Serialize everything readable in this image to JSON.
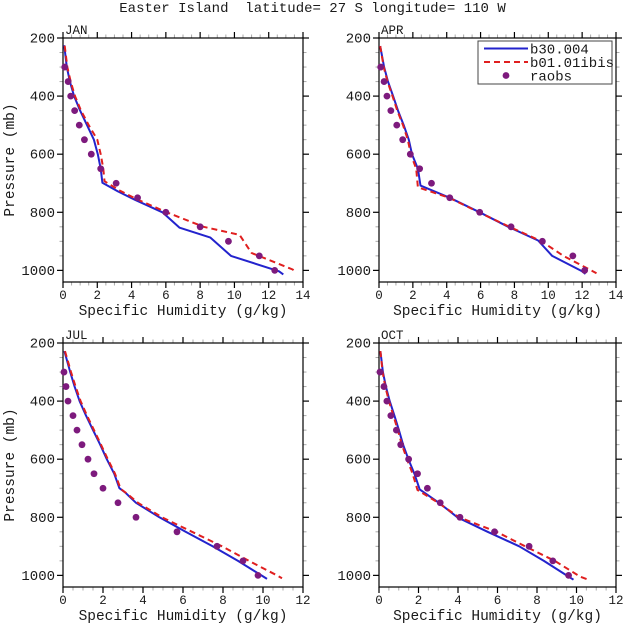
{
  "title": "Easter Island  latitude= 27 S longitude= 110 W",
  "axis_titles": {
    "x": "Specific Humidity (g/kg)",
    "y": "Pressure (mb)"
  },
  "colors": {
    "b30_004": "#2323cd",
    "b01_01ibis": "#e01f1f",
    "raobs": "#7d1a7d",
    "axis": "#000000",
    "minor_tick": "#aaaaaa",
    "legend_border": "#444444",
    "background": "#ffffff"
  },
  "legend": {
    "items": [
      {
        "label": "b30.004",
        "style": "solid",
        "color": "b30_004"
      },
      {
        "label": "b01.01ibis",
        "style": "dashed",
        "color": "b01_01ibis"
      },
      {
        "label": "raobs",
        "style": "dot",
        "color": "raobs"
      }
    ]
  },
  "chart_data": [
    {
      "type": "line",
      "title": "JAN",
      "xlabel": "Specific Humidity (g/kg)",
      "ylabel": "Pressure (mb)",
      "xlim": [
        0,
        14
      ],
      "ylim": [
        200,
        1040
      ],
      "y_ticks": [
        200,
        400,
        600,
        800,
        1000
      ],
      "x_major_step": 2,
      "x_minor_step": 0.5,
      "y_major_step": 200,
      "y_minor_step": 50,
      "y_inverted": true,
      "series": [
        {
          "name": "b30.004",
          "style": "solid",
          "color": "b30_004",
          "points": [
            [
              0.07,
              225
            ],
            [
              0.22,
              300
            ],
            [
              0.4,
              350
            ],
            [
              0.65,
              400
            ],
            [
              1.0,
              450
            ],
            [
              1.4,
              500
            ],
            [
              1.8,
              550
            ],
            [
              2.03,
              600
            ],
            [
              2.2,
              650
            ],
            [
              2.3,
              698
            ],
            [
              3.2,
              728
            ],
            [
              4.2,
              757
            ],
            [
              5.8,
              800
            ],
            [
              6.8,
              853
            ],
            [
              8.6,
              887
            ],
            [
              9.8,
              950
            ],
            [
              12.6,
              1003
            ],
            [
              12.85,
              1014
            ]
          ]
        },
        {
          "name": "b01.01ibis",
          "style": "dashed",
          "color": "b01_01ibis",
          "points": [
            [
              0.1,
              227
            ],
            [
              0.25,
              300
            ],
            [
              0.45,
              350
            ],
            [
              0.7,
              400
            ],
            [
              1.05,
              450
            ],
            [
              1.5,
              500
            ],
            [
              2.0,
              550
            ],
            [
              2.2,
              600
            ],
            [
              2.35,
              650
            ],
            [
              2.42,
              693
            ],
            [
              3.3,
              725
            ],
            [
              4.3,
              755
            ],
            [
              6.05,
              800
            ],
            [
              8.2,
              850
            ],
            [
              10.3,
              878
            ],
            [
              11.0,
              940
            ],
            [
              13.4,
              997
            ],
            [
              13.6,
              1007
            ]
          ]
        },
        {
          "name": "raobs",
          "style": "dot",
          "color": "raobs",
          "points": [
            [
              0.1,
              300
            ],
            [
              0.3,
              350
            ],
            [
              0.45,
              400
            ],
            [
              0.68,
              450
            ],
            [
              0.95,
              500
            ],
            [
              1.25,
              550
            ],
            [
              1.65,
              600
            ],
            [
              2.2,
              650
            ],
            [
              3.1,
              700
            ],
            [
              4.35,
              750
            ],
            [
              6.0,
              800
            ],
            [
              8.0,
              850
            ],
            [
              9.65,
              900
            ],
            [
              11.45,
              950
            ],
            [
              12.35,
              1000
            ]
          ]
        }
      ]
    },
    {
      "type": "line",
      "title": "APR",
      "xlabel": "Specific Humidity (g/kg)",
      "ylabel": "Pressure (mb)",
      "xlim": [
        0,
        14
      ],
      "ylim": [
        200,
        1040
      ],
      "y_ticks": [
        200,
        400,
        600,
        800,
        1000
      ],
      "x_major_step": 2,
      "x_minor_step": 0.5,
      "y_major_step": 200,
      "y_minor_step": 50,
      "y_inverted": true,
      "series": [
        {
          "name": "b30.004",
          "style": "solid",
          "color": "b30_004",
          "points": [
            [
              0.07,
              228
            ],
            [
              0.3,
              300
            ],
            [
              0.53,
              350
            ],
            [
              0.83,
              400
            ],
            [
              1.12,
              450
            ],
            [
              1.46,
              500
            ],
            [
              1.76,
              550
            ],
            [
              1.95,
              600
            ],
            [
              2.3,
              650
            ],
            [
              2.45,
              708
            ],
            [
              4.18,
              750
            ],
            [
              5.95,
              800
            ],
            [
              7.63,
              850
            ],
            [
              9.4,
              897
            ],
            [
              10.23,
              950
            ],
            [
              11.97,
              1002
            ],
            [
              12.2,
              1012
            ]
          ]
        },
        {
          "name": "b01.01ibis",
          "style": "dashed",
          "color": "b01_01ibis",
          "points": [
            [
              0.07,
              228
            ],
            [
              0.28,
              300
            ],
            [
              0.5,
              350
            ],
            [
              0.8,
              400
            ],
            [
              1.08,
              450
            ],
            [
              1.42,
              500
            ],
            [
              1.7,
              550
            ],
            [
              1.88,
              600
            ],
            [
              2.2,
              650
            ],
            [
              2.3,
              714
            ],
            [
              4.15,
              750
            ],
            [
              5.9,
              800
            ],
            [
              7.7,
              850
            ],
            [
              9.6,
              900
            ],
            [
              10.9,
              950
            ],
            [
              12.6,
              1002
            ],
            [
              12.85,
              1010
            ]
          ]
        },
        {
          "name": "raobs",
          "style": "dot",
          "color": "raobs",
          "points": [
            [
              0.1,
              300
            ],
            [
              0.3,
              350
            ],
            [
              0.47,
              400
            ],
            [
              0.7,
              450
            ],
            [
              1.05,
              500
            ],
            [
              1.4,
              550
            ],
            [
              1.85,
              600
            ],
            [
              2.4,
              650
            ],
            [
              3.1,
              700
            ],
            [
              4.18,
              750
            ],
            [
              5.95,
              800
            ],
            [
              7.8,
              850
            ],
            [
              9.65,
              900
            ],
            [
              11.45,
              950
            ],
            [
              12.15,
              1000
            ]
          ]
        }
      ]
    },
    {
      "type": "line",
      "title": "JUL",
      "xlabel": "Specific Humidity (g/kg)",
      "ylabel": "Pressure (mb)",
      "xlim": [
        0,
        12
      ],
      "ylim": [
        200,
        1040
      ],
      "y_ticks": [
        200,
        400,
        600,
        800,
        1000
      ],
      "x_major_step": 2,
      "x_minor_step": 0.5,
      "y_major_step": 200,
      "y_minor_step": 50,
      "y_inverted": true,
      "series": [
        {
          "name": "b30.004",
          "style": "solid",
          "color": "b30_004",
          "points": [
            [
              0.07,
              228
            ],
            [
              0.36,
              300
            ],
            [
              0.58,
              350
            ],
            [
              0.83,
              400
            ],
            [
              1.15,
              450
            ],
            [
              1.5,
              500
            ],
            [
              1.86,
              550
            ],
            [
              2.19,
              600
            ],
            [
              2.56,
              650
            ],
            [
              2.82,
              700
            ],
            [
              3.1,
              714
            ],
            [
              3.65,
              750
            ],
            [
              4.82,
              800
            ],
            [
              6.13,
              850
            ],
            [
              7.48,
              900
            ],
            [
              8.75,
              950
            ],
            [
              9.92,
              1000
            ],
            [
              10.2,
              1012
            ]
          ]
        },
        {
          "name": "b01.01ibis",
          "style": "dashed",
          "color": "b01_01ibis",
          "points": [
            [
              0.1,
              228
            ],
            [
              0.4,
              300
            ],
            [
              0.63,
              350
            ],
            [
              0.88,
              400
            ],
            [
              1.2,
              450
            ],
            [
              1.55,
              500
            ],
            [
              1.9,
              550
            ],
            [
              2.24,
              600
            ],
            [
              2.6,
              650
            ],
            [
              2.88,
              702
            ],
            [
              3.15,
              716
            ],
            [
              3.75,
              750
            ],
            [
              4.95,
              800
            ],
            [
              6.45,
              850
            ],
            [
              7.95,
              900
            ],
            [
              9.3,
              950
            ],
            [
              10.7,
              1000
            ],
            [
              10.95,
              1010
            ]
          ]
        },
        {
          "name": "raobs",
          "style": "dot",
          "color": "raobs",
          "points": [
            [
              0.05,
              300
            ],
            [
              0.15,
              350
            ],
            [
              0.25,
              400
            ],
            [
              0.5,
              450
            ],
            [
              0.7,
              500
            ],
            [
              0.95,
              550
            ],
            [
              1.25,
              600
            ],
            [
              1.55,
              650
            ],
            [
              2.0,
              700
            ],
            [
              2.75,
              750
            ],
            [
              3.65,
              800
            ],
            [
              5.7,
              850
            ],
            [
              7.7,
              900
            ],
            [
              9.0,
              950
            ],
            [
              9.75,
              1000
            ]
          ]
        }
      ]
    },
    {
      "type": "line",
      "title": "OCT",
      "xlabel": "Specific Humidity (g/kg)",
      "ylabel": "Pressure (mb)",
      "xlim": [
        0,
        12
      ],
      "ylim": [
        200,
        1040
      ],
      "y_ticks": [
        200,
        400,
        600,
        800,
        1000
      ],
      "x_major_step": 2,
      "x_minor_step": 0.5,
      "y_major_step": 200,
      "y_minor_step": 50,
      "y_inverted": true,
      "series": [
        {
          "name": "b30.004",
          "style": "solid",
          "color": "b30_004",
          "points": [
            [
              0.07,
              228
            ],
            [
              0.2,
              300
            ],
            [
              0.35,
              350
            ],
            [
              0.54,
              400
            ],
            [
              0.78,
              450
            ],
            [
              1.01,
              500
            ],
            [
              1.22,
              550
            ],
            [
              1.49,
              600
            ],
            [
              1.79,
              650
            ],
            [
              2.06,
              704
            ],
            [
              3.04,
              750
            ],
            [
              3.97,
              800
            ],
            [
              5.5,
              850
            ],
            [
              7.1,
              900
            ],
            [
              8.35,
              950
            ],
            [
              9.5,
              1000
            ],
            [
              9.85,
              1015
            ]
          ]
        },
        {
          "name": "b01.01ibis",
          "style": "dashed",
          "color": "b01_01ibis",
          "points": [
            [
              0.07,
              228
            ],
            [
              0.18,
              300
            ],
            [
              0.32,
              350
            ],
            [
              0.5,
              400
            ],
            [
              0.73,
              450
            ],
            [
              0.95,
              500
            ],
            [
              1.16,
              550
            ],
            [
              1.42,
              600
            ],
            [
              1.7,
              650
            ],
            [
              1.95,
              706
            ],
            [
              3.0,
              750
            ],
            [
              4.05,
              800
            ],
            [
              5.95,
              850
            ],
            [
              7.55,
              905
            ],
            [
              8.9,
              950
            ],
            [
              10.2,
              1005
            ],
            [
              10.6,
              1015
            ]
          ]
        },
        {
          "name": "raobs",
          "style": "dot",
          "color": "raobs",
          "points": [
            [
              0.05,
              300
            ],
            [
              0.25,
              350
            ],
            [
              0.4,
              400
            ],
            [
              0.6,
              450
            ],
            [
              0.88,
              500
            ],
            [
              1.1,
              550
            ],
            [
              1.5,
              600
            ],
            [
              1.95,
              650
            ],
            [
              2.45,
              700
            ],
            [
              3.1,
              750
            ],
            [
              4.1,
              800
            ],
            [
              5.85,
              850
            ],
            [
              7.6,
              900
            ],
            [
              8.8,
              950
            ],
            [
              9.6,
              1000
            ]
          ]
        }
      ]
    }
  ]
}
